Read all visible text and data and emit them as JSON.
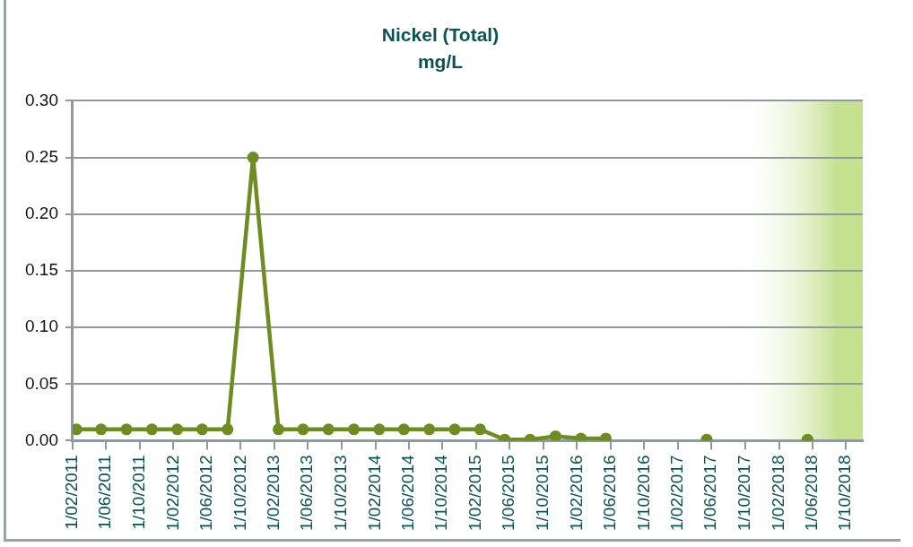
{
  "chart_data": {
    "type": "line",
    "title": "Nickel (Total)",
    "subtitle": "mg/L",
    "x": [
      "2011-02-15",
      "2011-05-15",
      "2011-08-15",
      "2011-11-15",
      "2012-02-15",
      "2012-05-15",
      "2012-08-15",
      "2012-11-15",
      "2013-02-15",
      "2013-05-15",
      "2013-08-15",
      "2013-11-15",
      "2014-02-15",
      "2014-05-15",
      "2014-08-15",
      "2014-11-15",
      "2015-02-15",
      "2015-05-15",
      "2015-08-15",
      "2015-11-15",
      "2016-02-15",
      "2016-05-15",
      "2016-08-15",
      "2016-11-15",
      "2017-02-15",
      "2017-05-15",
      "2017-08-15",
      "2017-11-15",
      "2018-02-15",
      "2018-05-15"
    ],
    "series": [
      {
        "color": "#6f8c22",
        "values": [
          0.01,
          0.01,
          0.01,
          0.01,
          0.01,
          0.01,
          0.01,
          0.25,
          0.01,
          0.01,
          0.01,
          0.01,
          0.01,
          0.01,
          0.01,
          0.01,
          0.01,
          0.001,
          0.001,
          0.004,
          0.002,
          0.002,
          null,
          null,
          null,
          0.001,
          null,
          null,
          null,
          0.001
        ]
      }
    ],
    "xlim": [
      "2011-02-01",
      "2018-12-01"
    ],
    "xticks": [
      {
        "value": "2011-02-01",
        "label": "1/02/2011"
      },
      {
        "value": "2011-06-01",
        "label": "1/06/2011"
      },
      {
        "value": "2011-10-01",
        "label": "1/10/2011"
      },
      {
        "value": "2012-02-01",
        "label": "1/02/2012"
      },
      {
        "value": "2012-06-01",
        "label": "1/06/2012"
      },
      {
        "value": "2012-10-01",
        "label": "1/10/2012"
      },
      {
        "value": "2013-02-01",
        "label": "1/02/2013"
      },
      {
        "value": "2013-06-01",
        "label": "1/06/2013"
      },
      {
        "value": "2013-10-01",
        "label": "1/10/2013"
      },
      {
        "value": "2014-02-01",
        "label": "1/02/2014"
      },
      {
        "value": "2014-06-01",
        "label": "1/06/2014"
      },
      {
        "value": "2014-10-01",
        "label": "1/10/2014"
      },
      {
        "value": "2015-02-01",
        "label": "1/02/2015"
      },
      {
        "value": "2015-06-01",
        "label": "1/06/2015"
      },
      {
        "value": "2015-10-01",
        "label": "1/10/2015"
      },
      {
        "value": "2016-02-01",
        "label": "1/02/2016"
      },
      {
        "value": "2016-06-01",
        "label": "1/06/2016"
      },
      {
        "value": "2016-10-01",
        "label": "1/10/2016"
      },
      {
        "value": "2017-02-01",
        "label": "1/02/2017"
      },
      {
        "value": "2017-06-01",
        "label": "1/06/2017"
      },
      {
        "value": "2017-10-01",
        "label": "1/10/2017"
      },
      {
        "value": "2018-02-01",
        "label": "1/02/2018"
      },
      {
        "value": "2018-06-01",
        "label": "1/06/2018"
      },
      {
        "value": "2018-10-01",
        "label": "1/10/2018"
      }
    ],
    "ylim": [
      0,
      0.3
    ],
    "yticks": [
      {
        "value": 0,
        "label": "0.00"
      },
      {
        "value": 0.05,
        "label": "0.05"
      },
      {
        "value": 0.1,
        "label": "0.10"
      },
      {
        "value": 0.15,
        "label": "0.15"
      },
      {
        "value": 0.2,
        "label": "0.20"
      },
      {
        "value": 0.25,
        "label": "0.25"
      },
      {
        "value": 0.3,
        "label": "0.30"
      }
    ],
    "bands": [
      {
        "axis": "x",
        "from": "2017-09-01",
        "to": "2018-12-01",
        "color": "#c5e08f"
      }
    ],
    "grid": "y",
    "legend": false,
    "marker": "circle",
    "line_style": "solid"
  }
}
